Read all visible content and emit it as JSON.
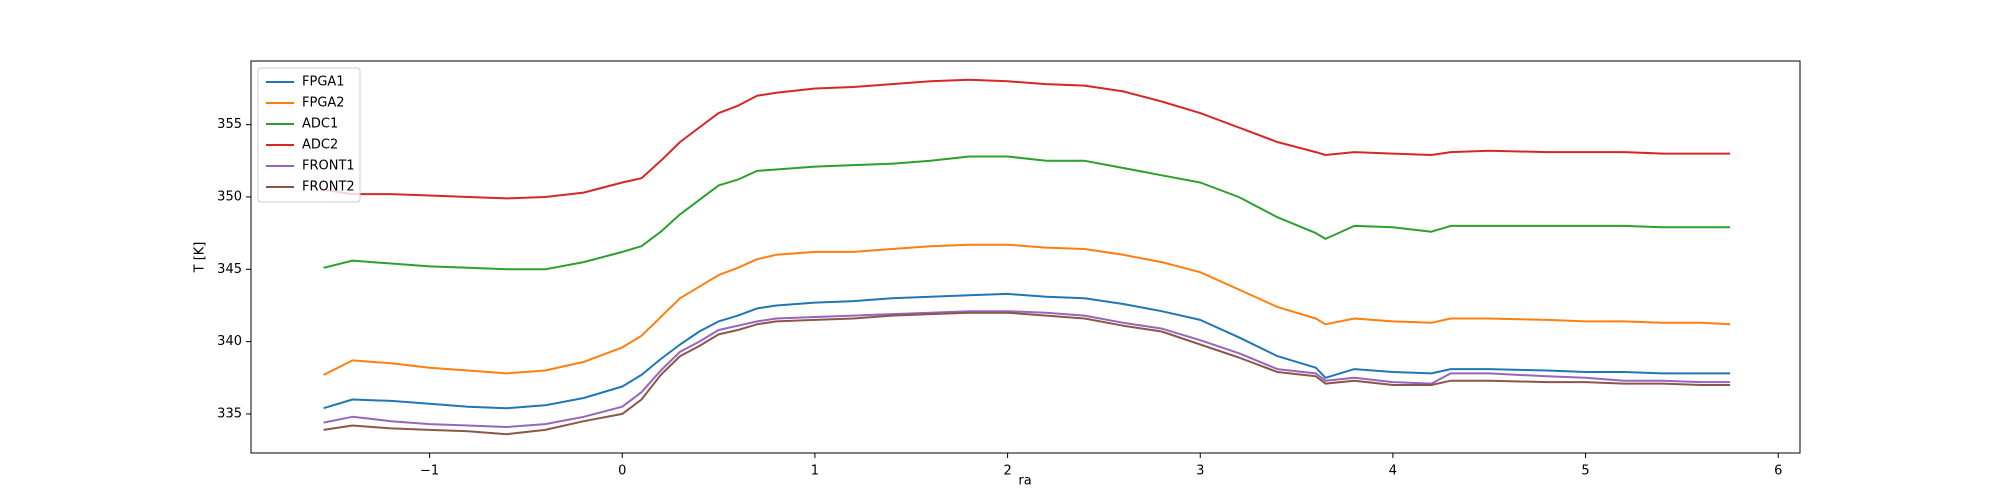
{
  "chart_data": {
    "type": "line",
    "xlabel": "ra",
    "ylabel": "T [K]",
    "xlim": [
      -1.927,
      6.113
    ],
    "ylim": [
      332.3,
      359.4
    ],
    "xticks": [
      {
        "value": -1,
        "label": "−1"
      },
      0,
      1,
      2,
      3,
      4,
      5,
      6
    ],
    "yticks": [
      335,
      340,
      345,
      350,
      355
    ],
    "legend": "upper left",
    "x": [
      -1.55,
      -1.4,
      -1.2,
      -1.0,
      -0.8,
      -0.6,
      -0.4,
      -0.2,
      0,
      0.1,
      0.2,
      0.3,
      0.4,
      0.5,
      0.6,
      0.7,
      0.8,
      1.0,
      1.2,
      1.4,
      1.6,
      1.8,
      2.0,
      2.2,
      2.4,
      2.6,
      2.8,
      3.0,
      3.2,
      3.4,
      3.6,
      3.65,
      3.8,
      4.0,
      4.2,
      4.3,
      4.5,
      4.8,
      5.0,
      5.2,
      5.4,
      5.6,
      5.75
    ],
    "series": [
      {
        "name": "FPGA1",
        "color": "#1f77b4",
        "values": [
          335.4,
          336.0,
          335.9,
          335.7,
          335.5,
          335.4,
          335.6,
          336.1,
          336.9,
          337.7,
          338.8,
          339.8,
          340.7,
          341.4,
          341.8,
          342.3,
          342.5,
          342.7,
          342.8,
          343.0,
          343.1,
          343.2,
          343.3,
          343.1,
          343.0,
          342.6,
          342.1,
          341.5,
          340.3,
          339.0,
          338.2,
          337.5,
          338.1,
          337.9,
          337.8,
          338.1,
          338.1,
          338.0,
          337.9,
          337.9,
          337.8,
          337.8,
          337.8
        ]
      },
      {
        "name": "FPGA2",
        "color": "#ff7f0e",
        "values": [
          337.7,
          338.7,
          338.5,
          338.2,
          338.0,
          337.8,
          338.0,
          338.6,
          339.6,
          340.4,
          341.7,
          343.0,
          343.8,
          344.6,
          345.1,
          345.7,
          346.0,
          346.2,
          346.2,
          346.4,
          346.6,
          346.7,
          346.7,
          346.5,
          346.4,
          346.0,
          345.5,
          344.8,
          343.6,
          342.4,
          341.6,
          341.2,
          341.6,
          341.4,
          341.3,
          341.6,
          341.6,
          341.5,
          341.4,
          341.4,
          341.3,
          341.3,
          341.2
        ]
      },
      {
        "name": "ADC1",
        "color": "#2ca02c",
        "values": [
          345.1,
          345.6,
          345.4,
          345.2,
          345.1,
          345.0,
          345.0,
          345.5,
          346.2,
          346.6,
          347.6,
          348.8,
          349.8,
          350.8,
          351.2,
          351.8,
          351.9,
          352.1,
          352.2,
          352.3,
          352.5,
          352.8,
          352.8,
          352.5,
          352.5,
          352.0,
          351.5,
          351.0,
          350.0,
          348.6,
          347.5,
          347.1,
          348.0,
          347.9,
          347.6,
          348.0,
          348.0,
          348.0,
          348.0,
          348.0,
          347.9,
          347.9,
          347.9
        ]
      },
      {
        "name": "ADC2",
        "color": "#d62728",
        "values": [
          350.5,
          350.2,
          350.2,
          350.1,
          350.0,
          349.9,
          350.0,
          350.3,
          351.0,
          351.3,
          352.5,
          353.8,
          354.8,
          355.8,
          356.3,
          357.0,
          357.2,
          357.5,
          357.6,
          357.8,
          358.0,
          358.1,
          358.0,
          357.8,
          357.7,
          357.3,
          356.6,
          355.8,
          354.8,
          353.8,
          353.1,
          352.9,
          353.1,
          353.0,
          352.9,
          353.1,
          353.2,
          353.1,
          353.1,
          353.1,
          353.0,
          353.0,
          353.0
        ]
      },
      {
        "name": "FRONT1",
        "color": "#9467bd",
        "values": [
          334.4,
          334.8,
          334.5,
          334.3,
          334.2,
          334.1,
          334.3,
          334.8,
          335.5,
          336.5,
          338.0,
          339.3,
          340.0,
          340.8,
          341.1,
          341.4,
          341.6,
          341.7,
          341.8,
          341.9,
          342.0,
          342.1,
          342.1,
          342.0,
          341.8,
          341.3,
          340.9,
          340.1,
          339.2,
          338.1,
          337.8,
          337.3,
          337.5,
          337.2,
          337.1,
          337.8,
          337.8,
          337.6,
          337.5,
          337.3,
          337.3,
          337.2,
          337.2
        ]
      },
      {
        "name": "FRONT2",
        "color": "#8c564b",
        "values": [
          333.9,
          334.2,
          334.0,
          333.9,
          333.8,
          333.6,
          333.9,
          334.5,
          335.0,
          336.0,
          337.7,
          339.0,
          339.7,
          340.5,
          340.8,
          341.2,
          341.4,
          341.5,
          341.6,
          341.8,
          341.9,
          342.0,
          342.0,
          341.8,
          341.6,
          341.1,
          340.7,
          339.8,
          338.9,
          337.9,
          337.6,
          337.1,
          337.3,
          337.0,
          337.0,
          337.3,
          337.3,
          337.2,
          337.2,
          337.1,
          337.1,
          337.0,
          337.0
        ]
      }
    ]
  }
}
